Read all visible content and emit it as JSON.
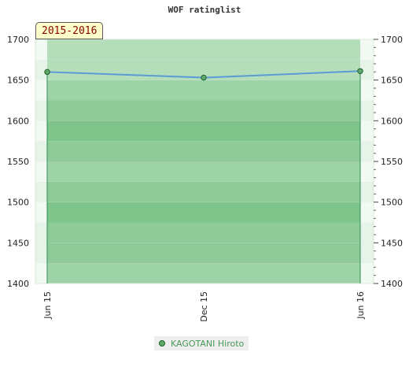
{
  "chart_data": {
    "type": "line",
    "title": "WOF ratinglist",
    "period": "2015-2016",
    "x": [
      "Jun 15",
      "Dec 15",
      "Jun 16"
    ],
    "series": [
      {
        "name": "KAGOTANI Hiroto",
        "values": [
          1660,
          1653,
          1661
        ]
      }
    ],
    "ylim": [
      1400,
      1700
    ],
    "yticks": [
      1400,
      1450,
      1500,
      1550,
      1600,
      1650,
      1700
    ],
    "xticks": [
      "Jun 15",
      "Dec 15",
      "Jun 16"
    ],
    "colors": {
      "line": "#5b9bd5",
      "marker": "#5faa6a",
      "drop": "#2e8b57",
      "legend_text": "#4a9a5a",
      "badge_text": "#8b0000"
    },
    "legend": "bottom-center",
    "grid": true
  }
}
